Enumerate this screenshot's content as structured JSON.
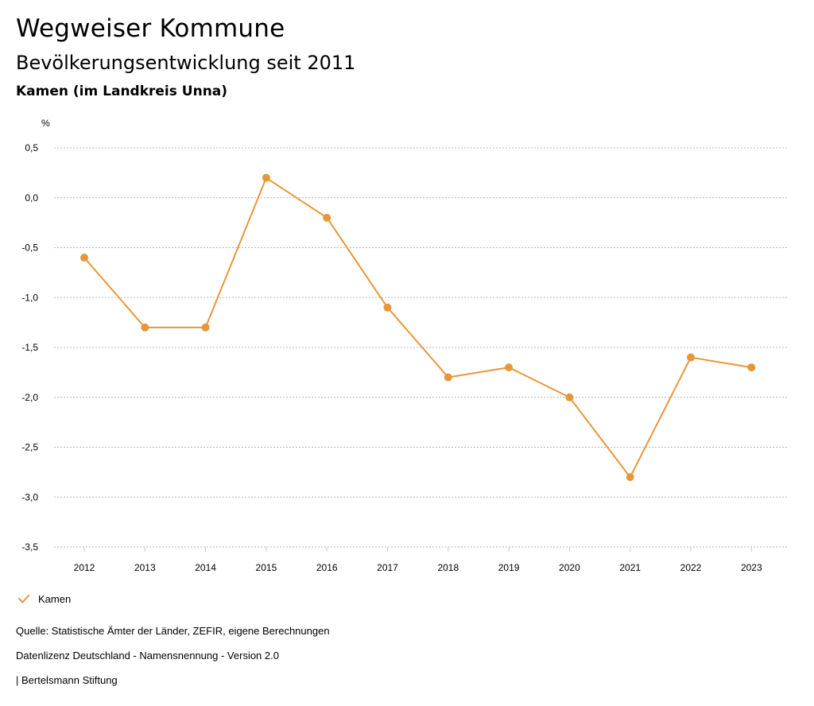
{
  "header": {
    "title": "Wegweiser Kommune",
    "subtitle": "Bevölkerungsentwicklung seit 2011",
    "region": "Kamen (im Landkreis Unna)"
  },
  "footer": {
    "source": "Quelle: Statistische Ämter der Länder, ZEFIR, eigene Berechnungen",
    "license": "Datenlizenz Deutschland - Namensnennung - Version 2.0",
    "publisher": "| Bertelsmann Stiftung"
  },
  "chart_data": {
    "type": "line",
    "title": "Bevölkerungsentwicklung seit 2011",
    "ylabel": "%",
    "xlabel": "",
    "ylim": [
      -3.5,
      0.5
    ],
    "y_ticks": [
      0.5,
      0.0,
      -0.5,
      -1.0,
      -1.5,
      -2.0,
      -2.5,
      -3.0,
      -3.5
    ],
    "y_tick_labels": [
      "0,5",
      "0,0",
      "-0,5",
      "-1,0",
      "-1,5",
      "-2,0",
      "-2,5",
      "-3,0",
      "-3,5"
    ],
    "categories": [
      "2012",
      "2013",
      "2014",
      "2015",
      "2016",
      "2017",
      "2018",
      "2019",
      "2020",
      "2021",
      "2022",
      "2023"
    ],
    "series": [
      {
        "name": "Kamen",
        "color": "#e8963a",
        "values": [
          -0.6,
          -1.3,
          -1.3,
          0.2,
          -0.2,
          -1.1,
          -1.8,
          -1.7,
          -2.0,
          -2.8,
          -1.6,
          -1.7
        ]
      }
    ],
    "grid": true,
    "legend": "bottom-left"
  }
}
